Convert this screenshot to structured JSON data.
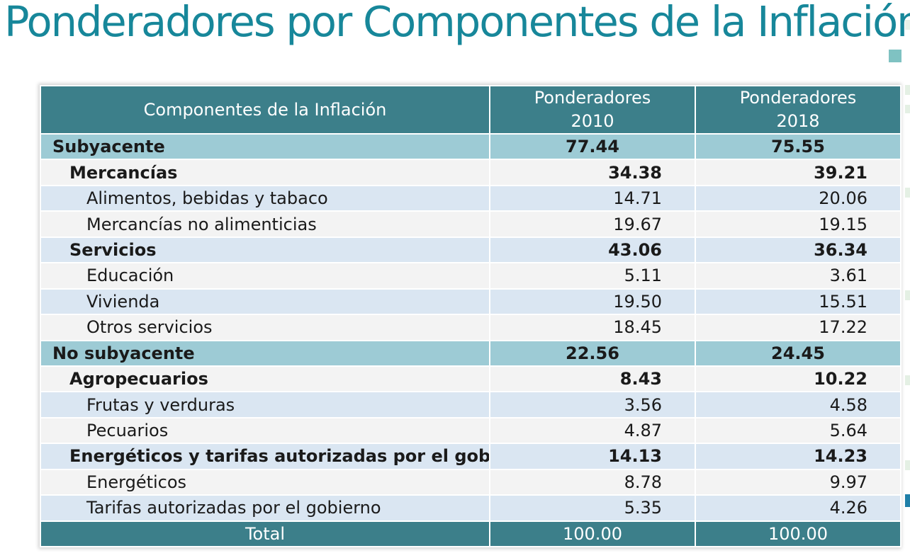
{
  "title": "Ponderadores por Componentes de la Inflación",
  "table": {
    "headers": {
      "component": "Componentes de la Inflación",
      "col2010_line1": "Ponderadores",
      "col2010_line2": "2010",
      "col2018_line1": "Ponderadores",
      "col2018_line2": "2018"
    },
    "rows": [
      {
        "level": "cat",
        "name": "Subyacente",
        "v2010": "77.44",
        "v2018": "75.55"
      },
      {
        "level": "sub",
        "name": "Mercancías",
        "v2010": "34.38",
        "v2018": "39.21"
      },
      {
        "level": "item",
        "name": "Alimentos, bebidas y tabaco",
        "v2010": "14.71",
        "v2018": "20.06"
      },
      {
        "level": "item",
        "name": "Mercancías no alimenticias",
        "v2010": "19.67",
        "v2018": "19.15"
      },
      {
        "level": "sub",
        "name": "Servicios",
        "v2010": "43.06",
        "v2018": "36.34"
      },
      {
        "level": "item",
        "name": "Educación",
        "v2010": "5.11",
        "v2018": "3.61"
      },
      {
        "level": "item",
        "name": "Vivienda",
        "v2010": "19.50",
        "v2018": "15.51"
      },
      {
        "level": "item",
        "name": "Otros servicios",
        "v2010": "18.45",
        "v2018": "17.22"
      },
      {
        "level": "cat",
        "name": "No subyacente",
        "v2010": "22.56",
        "v2018": "24.45"
      },
      {
        "level": "sub",
        "name": "Agropecuarios",
        "v2010": "8.43",
        "v2018": "10.22"
      },
      {
        "level": "item",
        "name": "Frutas y verduras",
        "v2010": "3.56",
        "v2018": "4.58"
      },
      {
        "level": "item",
        "name": "Pecuarios",
        "v2010": "4.87",
        "v2018": "5.64"
      },
      {
        "level": "sub",
        "name": "Energéticos y tarifas autorizadas por el gobierno",
        "v2010": "14.13",
        "v2018": "14.23"
      },
      {
        "level": "item",
        "name": "Energéticos",
        "v2010": "8.78",
        "v2018": "9.97"
      },
      {
        "level": "item",
        "name": "Tarifas autorizadas por el gobierno",
        "v2010": "5.35",
        "v2018": "4.26"
      }
    ],
    "total": {
      "name": "Total",
      "v2010": "100.00",
      "v2018": "100.00"
    }
  },
  "colors": {
    "title": "#17879a",
    "header_bg": "#3c7f8a",
    "category_bg": "#9dcbd5",
    "row_light": "#f3f3f3",
    "row_blue": "#dae6f2"
  }
}
